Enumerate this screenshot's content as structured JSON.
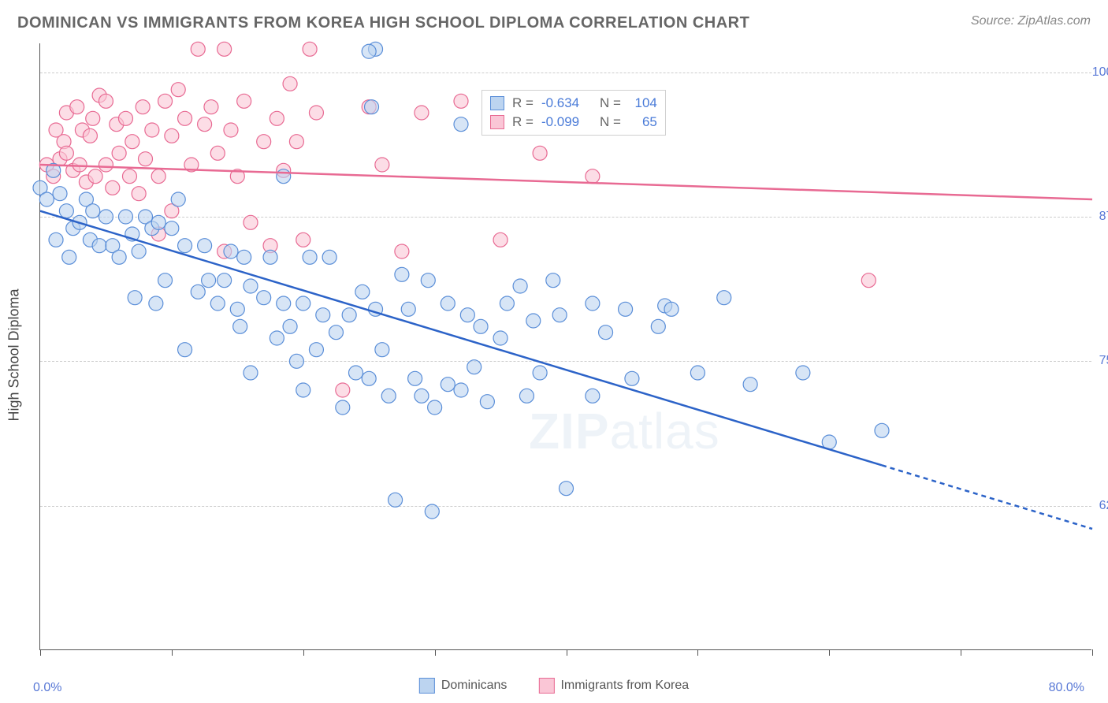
{
  "header": {
    "title": "DOMINICAN VS IMMIGRANTS FROM KOREA HIGH SCHOOL DIPLOMA CORRELATION CHART",
    "source": "Source: ZipAtlas.com"
  },
  "yaxis": {
    "label": "High School Diploma",
    "min": 50.0,
    "max": 102.5,
    "ticks": [
      {
        "value": 62.5,
        "label": "62.5%"
      },
      {
        "value": 75.0,
        "label": "75.0%"
      },
      {
        "value": 87.5,
        "label": "87.5%"
      },
      {
        "value": 100.0,
        "label": "100.0%"
      }
    ],
    "gridline_color": "#cccccc"
  },
  "xaxis": {
    "min": 0.0,
    "max": 80.0,
    "left_label": "0.0%",
    "right_label": "80.0%",
    "tick_positions": [
      0,
      10,
      20,
      30,
      40,
      50,
      60,
      70,
      80
    ]
  },
  "legend_bottom": {
    "items": [
      {
        "label": "Dominicans",
        "fill": "#bcd4f0",
        "stroke": "#5a8ed8"
      },
      {
        "label": "Immigrants from Korea",
        "fill": "#fac6d6",
        "stroke": "#e86a93"
      }
    ]
  },
  "legend_top": {
    "rows": [
      {
        "swatch_fill": "#bcd4f0",
        "swatch_stroke": "#5a8ed8",
        "r": "-0.634",
        "n": "104"
      },
      {
        "swatch_fill": "#fac6d6",
        "swatch_stroke": "#e86a93",
        "r": "-0.099",
        "n": "65"
      }
    ]
  },
  "watermark": {
    "text_bold": "ZIP",
    "text_light": "atlas"
  },
  "series": {
    "dominicans": {
      "fill": "#bcd4f0",
      "stroke": "#5a8ed8",
      "opacity": 0.6,
      "radius": 9,
      "trend": {
        "color": "#2c63c8",
        "y_at_xmin": 88.0,
        "solid_end_x": 64.0,
        "y_at_solid_end": 66.0,
        "y_at_xmax": 60.5
      },
      "points": [
        [
          0,
          90
        ],
        [
          0.5,
          89
        ],
        [
          1,
          91.5
        ],
        [
          1.5,
          89.5
        ],
        [
          1.2,
          85.5
        ],
        [
          2,
          88
        ],
        [
          2.5,
          86.5
        ],
        [
          3,
          87
        ],
        [
          3.5,
          89
        ],
        [
          2.2,
          84
        ],
        [
          3.8,
          85.5
        ],
        [
          4,
          88
        ],
        [
          4.5,
          85
        ],
        [
          5,
          87.5
        ],
        [
          5.5,
          85
        ],
        [
          6,
          84
        ],
        [
          6.5,
          87.5
        ],
        [
          7,
          86
        ],
        [
          7.5,
          84.5
        ],
        [
          8,
          87.5
        ],
        [
          7.2,
          80.5
        ],
        [
          8.5,
          86.5
        ],
        [
          9,
          87
        ],
        [
          8.8,
          80
        ],
        [
          10,
          86.5
        ],
        [
          9.5,
          82
        ],
        [
          10.5,
          89
        ],
        [
          11,
          85
        ],
        [
          12,
          81
        ],
        [
          12.5,
          85
        ],
        [
          11,
          76
        ],
        [
          12.8,
          82
        ],
        [
          13.5,
          80
        ],
        [
          14,
          82
        ],
        [
          14.5,
          84.5
        ],
        [
          15,
          79.5
        ],
        [
          15.5,
          84
        ],
        [
          15.2,
          78
        ],
        [
          16,
          81.5
        ],
        [
          16,
          74
        ],
        [
          17,
          80.5
        ],
        [
          17.5,
          84
        ],
        [
          18,
          77
        ],
        [
          18.5,
          80
        ],
        [
          19,
          78
        ],
        [
          18.5,
          91
        ],
        [
          19.5,
          75
        ],
        [
          20,
          80
        ],
        [
          20.5,
          84
        ],
        [
          20,
          72.5
        ],
        [
          21.5,
          79
        ],
        [
          21,
          76
        ],
        [
          22,
          84
        ],
        [
          22.5,
          77.5
        ],
        [
          23,
          71
        ],
        [
          23.5,
          79
        ],
        [
          24,
          74
        ],
        [
          24.5,
          81
        ],
        [
          25,
          73.5
        ],
        [
          25.5,
          79.5
        ],
        [
          25.5,
          102
        ],
        [
          25,
          101.8
        ],
        [
          25.2,
          97
        ],
        [
          26,
          76
        ],
        [
          26.5,
          72
        ],
        [
          27,
          63
        ],
        [
          27.5,
          82.5
        ],
        [
          28,
          79.5
        ],
        [
          28.5,
          73.5
        ],
        [
          29,
          72
        ],
        [
          29.5,
          82
        ],
        [
          30,
          71
        ],
        [
          29.8,
          62
        ],
        [
          31,
          73
        ],
        [
          31,
          80
        ],
        [
          32,
          72.5
        ],
        [
          32.5,
          79
        ],
        [
          32,
          95.5
        ],
        [
          33,
          74.5
        ],
        [
          33.5,
          78
        ],
        [
          34,
          71.5
        ],
        [
          35,
          77
        ],
        [
          35.5,
          80
        ],
        [
          36.5,
          81.5
        ],
        [
          37,
          72
        ],
        [
          37.5,
          78.5
        ],
        [
          38,
          74
        ],
        [
          39,
          82
        ],
        [
          39.5,
          79
        ],
        [
          40,
          64
        ],
        [
          42,
          72
        ],
        [
          42,
          80
        ],
        [
          43,
          77.5
        ],
        [
          45,
          73.5
        ],
        [
          44.5,
          79.5
        ],
        [
          47,
          78
        ],
        [
          47.5,
          79.8
        ],
        [
          48,
          79.5
        ],
        [
          50,
          74
        ],
        [
          52,
          80.5
        ],
        [
          54,
          73
        ],
        [
          58,
          74
        ],
        [
          60,
          68
        ],
        [
          64,
          69
        ]
      ]
    },
    "korea": {
      "fill": "#fac6d6",
      "stroke": "#e86a93",
      "opacity": 0.6,
      "radius": 9,
      "trend": {
        "color": "#e86a93",
        "y_at_xmin": 92.0,
        "y_at_xmax": 89.0
      },
      "points": [
        [
          0.5,
          92
        ],
        [
          1,
          91
        ],
        [
          1.2,
          95
        ],
        [
          1.5,
          92.5
        ],
        [
          1.8,
          94
        ],
        [
          2,
          93
        ],
        [
          2,
          96.5
        ],
        [
          2.5,
          91.5
        ],
        [
          2.8,
          97
        ],
        [
          3,
          92
        ],
        [
          3.2,
          95
        ],
        [
          3.5,
          90.5
        ],
        [
          3.8,
          94.5
        ],
        [
          4,
          96
        ],
        [
          4.2,
          91
        ],
        [
          4.5,
          98
        ],
        [
          5,
          92
        ],
        [
          5,
          97.5
        ],
        [
          5.5,
          90
        ],
        [
          5.8,
          95.5
        ],
        [
          6,
          93
        ],
        [
          6.5,
          96
        ],
        [
          6.8,
          91
        ],
        [
          7,
          94
        ],
        [
          7.5,
          89.5
        ],
        [
          7.8,
          97
        ],
        [
          8,
          92.5
        ],
        [
          8.5,
          95
        ],
        [
          9,
          91
        ],
        [
          9.5,
          97.5
        ],
        [
          9,
          86
        ],
        [
          10,
          94.5
        ],
        [
          10,
          88
        ],
        [
          10.5,
          98.5
        ],
        [
          11,
          96
        ],
        [
          11.5,
          92
        ],
        [
          12,
          102
        ],
        [
          12.5,
          95.5
        ],
        [
          13,
          97
        ],
        [
          13.5,
          93
        ],
        [
          14,
          84.5
        ],
        [
          14,
          102
        ],
        [
          14.5,
          95
        ],
        [
          15,
          91
        ],
        [
          15.5,
          97.5
        ],
        [
          16,
          87
        ],
        [
          17,
          94
        ],
        [
          17.5,
          85
        ],
        [
          18,
          96
        ],
        [
          18.5,
          91.5
        ],
        [
          19,
          99
        ],
        [
          19.5,
          94
        ],
        [
          20,
          85.5
        ],
        [
          20.5,
          102
        ],
        [
          21,
          96.5
        ],
        [
          23,
          72.5
        ],
        [
          25,
          97
        ],
        [
          26,
          92
        ],
        [
          27.5,
          84.5
        ],
        [
          29,
          96.5
        ],
        [
          32,
          97.5
        ],
        [
          35,
          85.5
        ],
        [
          38,
          93
        ],
        [
          42,
          91
        ],
        [
          63,
          82
        ]
      ]
    }
  },
  "background_color": "#ffffff"
}
